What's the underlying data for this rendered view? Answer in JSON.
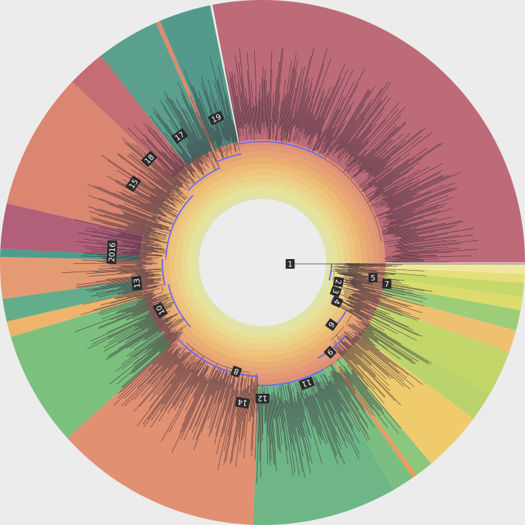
{
  "background_color": "#ececec",
  "center_color": "#ececec",
  "path_color": "#6b6bf0",
  "branch_color": "#3a2a3a",
  "label_fill": "#2b2b2b",
  "ring_colors": [
    "#e2e3a8",
    "#e6e39c",
    "#ead98f",
    "#ecd088",
    "#eec57e",
    "#edbb76",
    "#eaae72",
    "#e7a474",
    "#e49a76",
    "#df9176"
  ],
  "clades": [
    {
      "id": "c19",
      "label": "19",
      "color": "#bd6b78"
    },
    {
      "id": "c17",
      "label": "17",
      "color": "#549a8c"
    },
    {
      "id": "c17b",
      "label": "",
      "color": "#df8a6e"
    },
    {
      "id": "c18",
      "label": "18",
      "color": "#5aa08c"
    },
    {
      "id": "c18b",
      "label": "",
      "color": "#c46e74"
    },
    {
      "id": "c15",
      "label": "15",
      "color": "#db8670"
    },
    {
      "id": "c2016",
      "label": "2016",
      "color": "#b2607a"
    },
    {
      "id": "cteal",
      "label": "",
      "color": "#4e9c8e"
    },
    {
      "id": "c13",
      "label": "13",
      "color": "#e49a72"
    },
    {
      "id": "c13b",
      "label": "",
      "color": "#63ad8b"
    },
    {
      "id": "c10o",
      "label": "",
      "color": "#eeb46c"
    },
    {
      "id": "c10",
      "label": "10",
      "color": "#7cc07e"
    },
    {
      "id": "c14",
      "label": "14",
      "color": "#e19072"
    },
    {
      "id": "c12",
      "label": "12",
      "color": "#6eb686"
    },
    {
      "id": "c12b",
      "label": "",
      "color": "#7cbd82"
    },
    {
      "id": "c11o",
      "label": "",
      "color": "#ef9a5f"
    },
    {
      "id": "c11",
      "label": "11",
      "color": "#8cc67c"
    },
    {
      "id": "c9",
      "label": "9",
      "color": "#efcb6e"
    },
    {
      "id": "c9b",
      "label": "",
      "color": "#bbd36c"
    },
    {
      "id": "c6",
      "label": "6",
      "color": "#c2d66a"
    },
    {
      "id": "c6b",
      "label": "",
      "color": "#efc070"
    },
    {
      "id": "c4",
      "label": "4",
      "color": "#9ecd7a"
    },
    {
      "id": "c3",
      "label": "3",
      "color": "#dcdc6c"
    },
    {
      "id": "c2",
      "label": "2",
      "color": "#c7d86a"
    },
    {
      "id": "c7",
      "label": "7",
      "color": "#e4df7a"
    },
    {
      "id": "c5",
      "label": "5",
      "color": "#f0e8a0"
    }
  ],
  "internal_labels": [
    "1",
    "8"
  ]
}
